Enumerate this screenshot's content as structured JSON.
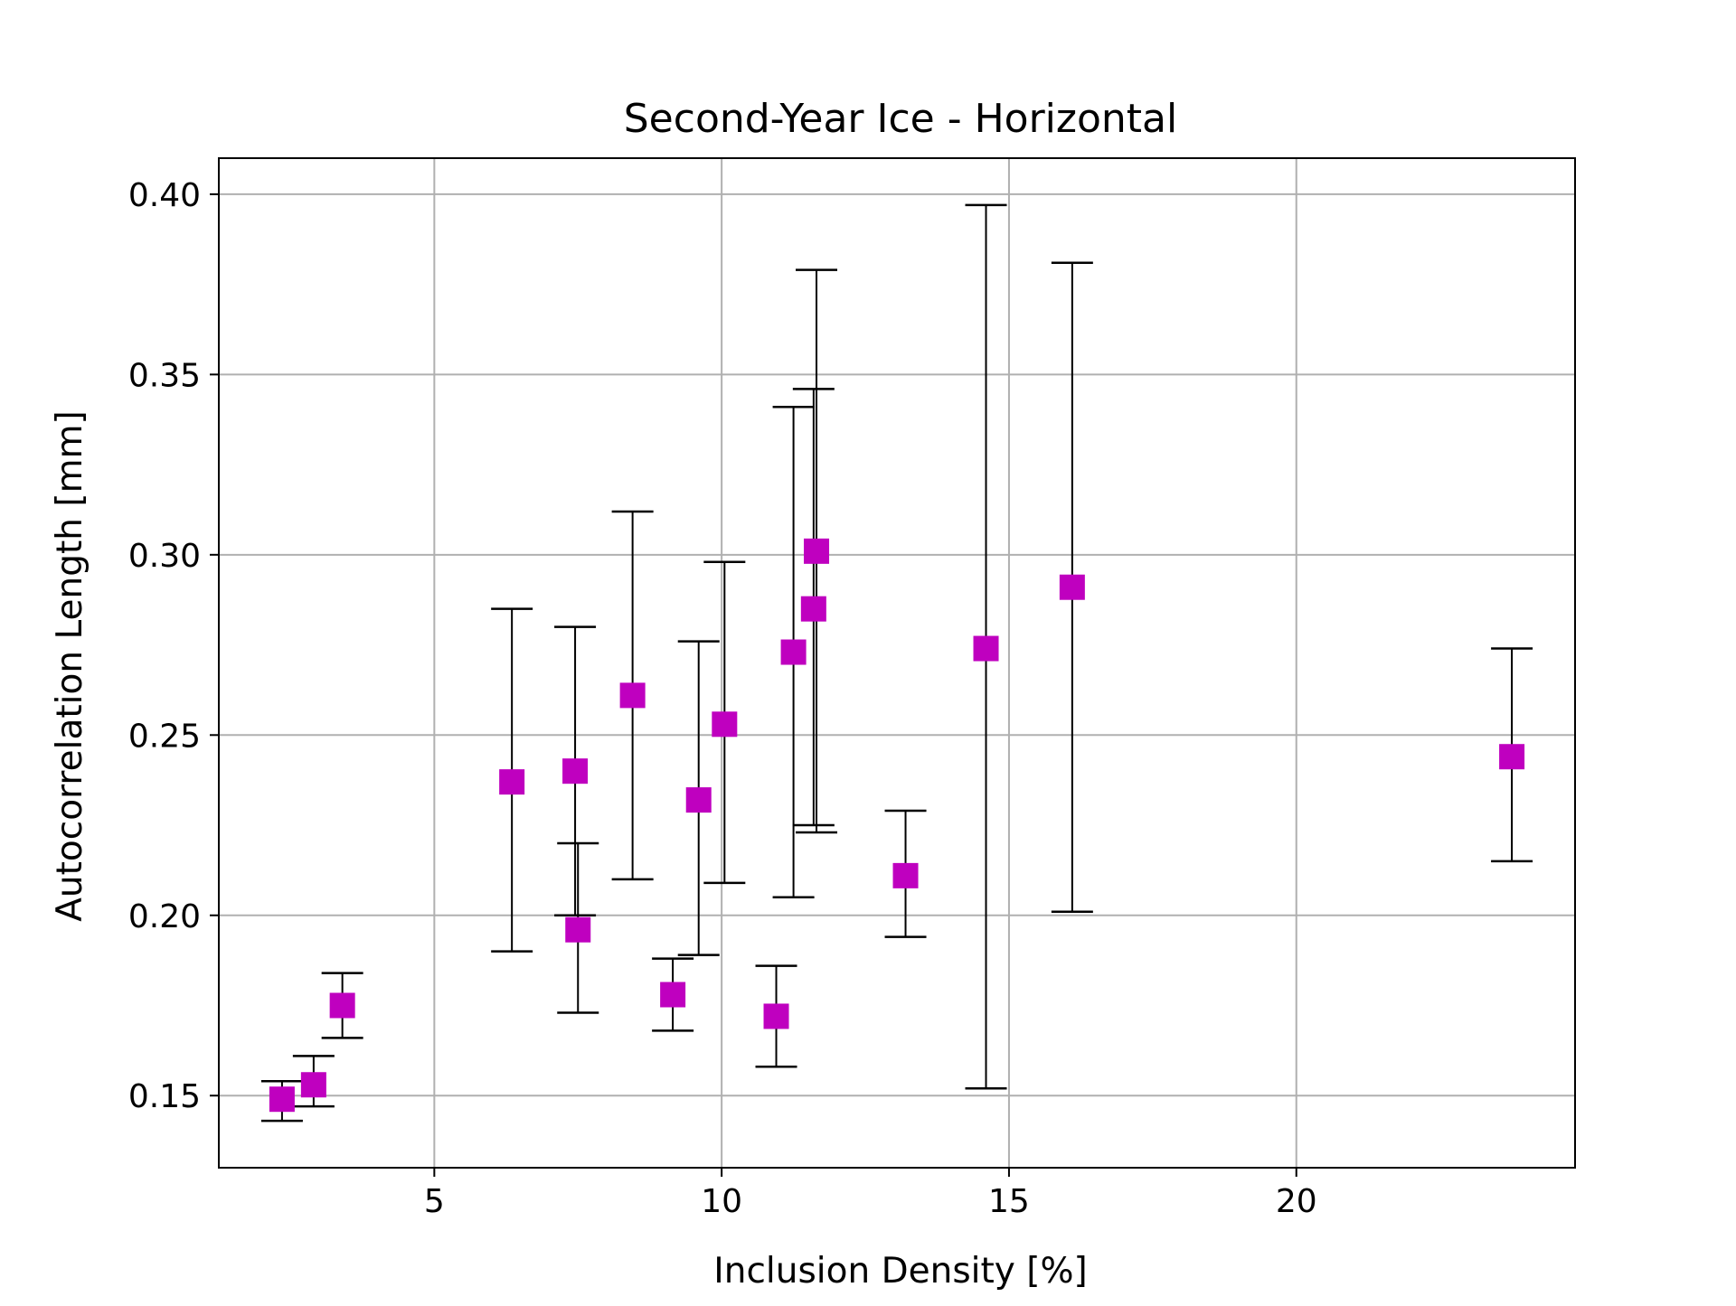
{
  "chart_data": {
    "type": "scatter",
    "title": "Second-Year Ice - Horizontal",
    "xlabel": "Inclusion Density [%]",
    "ylabel": "Autocorrelation Length [mm]",
    "xlim": [
      1.25,
      24.85
    ],
    "ylim": [
      0.13,
      0.41
    ],
    "x_ticks": [
      5,
      10,
      15,
      20
    ],
    "x_tick_labels": [
      "5",
      "10",
      "15",
      "20"
    ],
    "y_ticks": [
      0.15,
      0.2,
      0.25,
      0.3,
      0.35,
      0.4
    ],
    "y_tick_labels": [
      "0.15",
      "0.20",
      "0.25",
      "0.30",
      "0.35",
      "0.40"
    ],
    "grid": true,
    "marker": "square",
    "colors": {
      "marker": "#bf00bf",
      "errorbar": "#000000",
      "grid": "#b0b0b0"
    },
    "points": [
      {
        "x": 2.35,
        "y": 0.149,
        "yerr_low": 0.143,
        "yerr_high": 0.154
      },
      {
        "x": 2.9,
        "y": 0.153,
        "yerr_low": 0.147,
        "yerr_high": 0.161
      },
      {
        "x": 3.4,
        "y": 0.175,
        "yerr_low": 0.166,
        "yerr_high": 0.184
      },
      {
        "x": 6.35,
        "y": 0.237,
        "yerr_low": 0.19,
        "yerr_high": 0.285
      },
      {
        "x": 7.45,
        "y": 0.24,
        "yerr_low": 0.2,
        "yerr_high": 0.28
      },
      {
        "x": 7.5,
        "y": 0.196,
        "yerr_low": 0.173,
        "yerr_high": 0.22
      },
      {
        "x": 8.45,
        "y": 0.261,
        "yerr_low": 0.21,
        "yerr_high": 0.312
      },
      {
        "x": 9.15,
        "y": 0.178,
        "yerr_low": 0.168,
        "yerr_high": 0.188
      },
      {
        "x": 9.6,
        "y": 0.232,
        "yerr_low": 0.189,
        "yerr_high": 0.276
      },
      {
        "x": 10.05,
        "y": 0.253,
        "yerr_low": 0.209,
        "yerr_high": 0.298
      },
      {
        "x": 10.95,
        "y": 0.172,
        "yerr_low": 0.158,
        "yerr_high": 0.186
      },
      {
        "x": 11.25,
        "y": 0.273,
        "yerr_low": 0.205,
        "yerr_high": 0.341
      },
      {
        "x": 11.6,
        "y": 0.285,
        "yerr_low": 0.225,
        "yerr_high": 0.346
      },
      {
        "x": 11.65,
        "y": 0.301,
        "yerr_low": 0.223,
        "yerr_high": 0.379
      },
      {
        "x": 13.2,
        "y": 0.211,
        "yerr_low": 0.194,
        "yerr_high": 0.229
      },
      {
        "x": 14.6,
        "y": 0.274,
        "yerr_low": 0.152,
        "yerr_high": 0.397
      },
      {
        "x": 16.1,
        "y": 0.291,
        "yerr_low": 0.201,
        "yerr_high": 0.381
      },
      {
        "x": 23.75,
        "y": 0.244,
        "yerr_low": 0.215,
        "yerr_high": 0.274
      }
    ]
  }
}
